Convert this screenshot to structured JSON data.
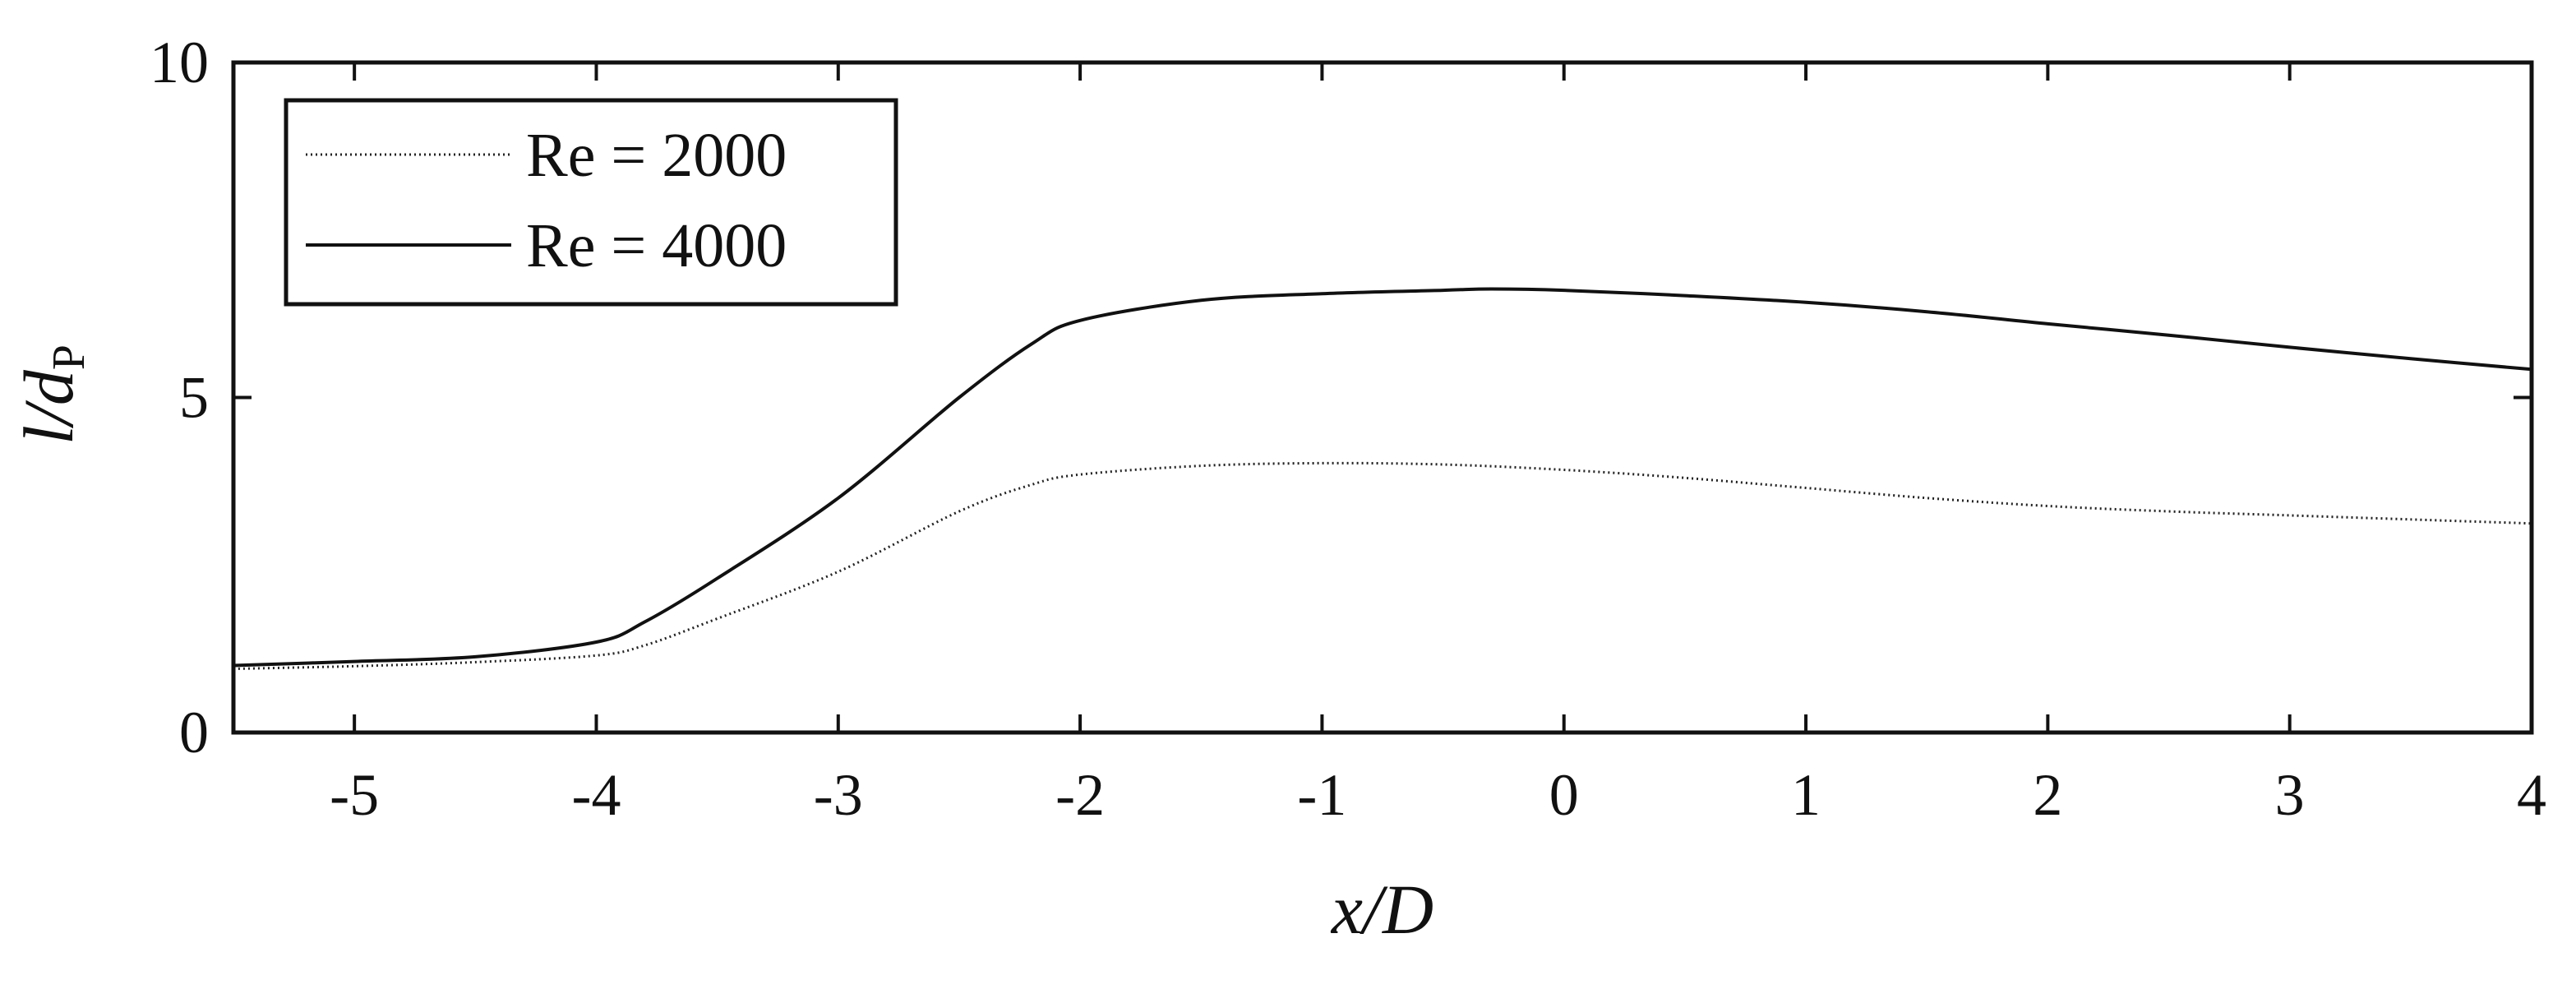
{
  "chart_data": {
    "type": "line",
    "xlabel": "x/D",
    "ylabel_main": "l/d",
    "ylabel_sub": "P",
    "xlim": [
      -5.5,
      4
    ],
    "ylim": [
      0,
      10
    ],
    "xticks": [
      -5,
      -4,
      -3,
      -2,
      -1,
      0,
      1,
      2,
      3,
      4
    ],
    "xtick_labels": [
      "-5",
      "-4",
      "-3",
      "-2",
      "-1",
      "0",
      "1",
      "2",
      "3",
      "4"
    ],
    "yticks": [
      0,
      5,
      10
    ],
    "ytick_labels": [
      "0",
      "5",
      "10"
    ],
    "grid": false,
    "legend_position": "top-left",
    "series": [
      {
        "name": "Re = 2000",
        "style": "dotted",
        "x": [
          -5.5,
          -5,
          -4.5,
          -4,
          -3.8,
          -3.5,
          -3,
          -2.5,
          -2.2,
          -2,
          -1.5,
          -1,
          -0.5,
          0,
          0.5,
          1,
          1.5,
          2,
          2.5,
          3,
          3.5,
          4
        ],
        "y": [
          0.95,
          0.99,
          1.05,
          1.15,
          1.3,
          1.7,
          2.4,
          3.3,
          3.7,
          3.85,
          3.98,
          4.02,
          4.0,
          3.92,
          3.8,
          3.65,
          3.5,
          3.38,
          3.3,
          3.24,
          3.18,
          3.12
        ]
      },
      {
        "name": "Re = 4000",
        "style": "solid",
        "x": [
          -5.5,
          -5,
          -4.5,
          -4,
          -3.8,
          -3.5,
          -3,
          -2.5,
          -2.2,
          -2,
          -1.5,
          -1,
          -0.5,
          -0.3,
          0,
          0.5,
          1,
          1.5,
          2,
          2.5,
          3,
          3.5,
          4
        ],
        "y": [
          1.0,
          1.06,
          1.13,
          1.35,
          1.65,
          2.3,
          3.5,
          5.0,
          5.8,
          6.15,
          6.45,
          6.55,
          6.6,
          6.62,
          6.6,
          6.52,
          6.42,
          6.28,
          6.1,
          5.93,
          5.75,
          5.58,
          5.42
        ]
      }
    ]
  }
}
